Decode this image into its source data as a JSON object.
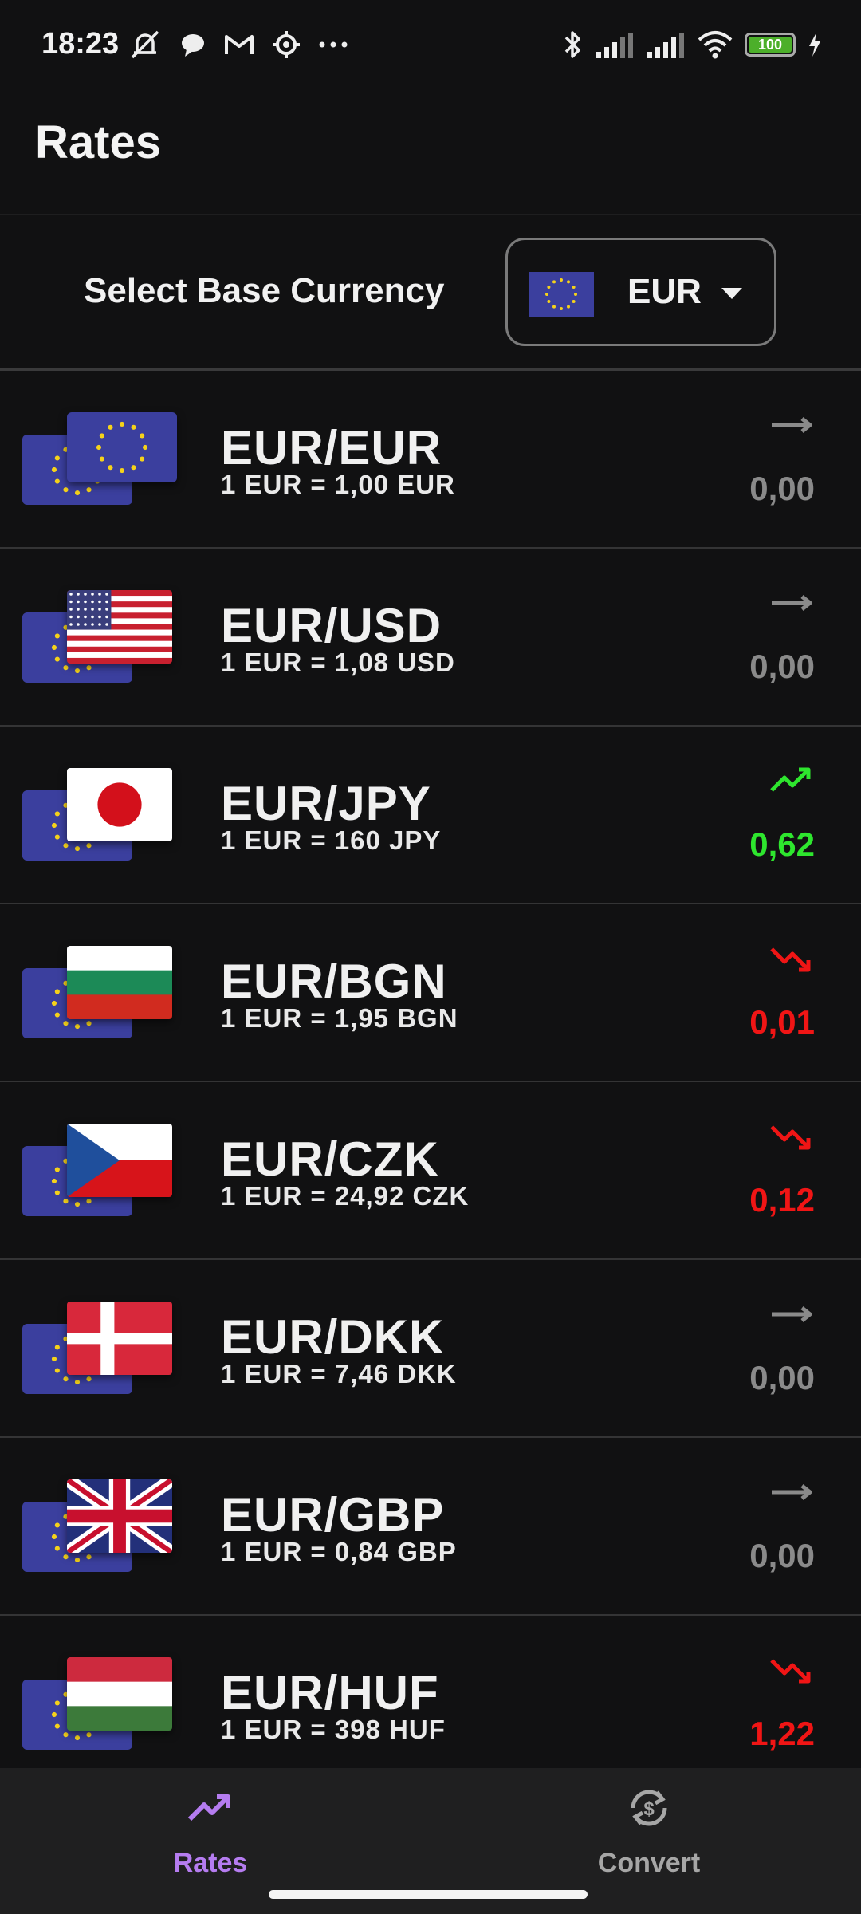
{
  "status_bar": {
    "time": "18:23",
    "battery": "100",
    "icons_left": [
      "bell-off-icon",
      "chat-bubble-icon",
      "gmail-icon",
      "settings-cog-icon",
      "more-dots-icon"
    ],
    "icons_right": [
      "bluetooth-icon",
      "signal-icon",
      "signal-icon",
      "wifi-icon",
      "battery-icon",
      "charging-icon"
    ]
  },
  "header": {
    "title": "Rates"
  },
  "base_currency": {
    "label": "Select Base Currency",
    "selected": "EUR",
    "flag": "eu-flag-icon"
  },
  "colors": {
    "up": "#2ee62e",
    "down": "#f01515",
    "flat": "#8a8a8a",
    "accent": "#b57cf0",
    "nav_inactive": "#a6a6a6"
  },
  "rates": [
    {
      "pair": "EUR/EUR",
      "rate": "1 EUR = 1,00 EUR",
      "change": "0,00",
      "trend": "flat",
      "flag": "eu"
    },
    {
      "pair": "EUR/USD",
      "rate": "1 EUR = 1,08 USD",
      "change": "0,00",
      "trend": "flat",
      "flag": "us"
    },
    {
      "pair": "EUR/JPY",
      "rate": "1 EUR = 160 JPY",
      "change": "0,62",
      "trend": "up",
      "flag": "jp"
    },
    {
      "pair": "EUR/BGN",
      "rate": "1 EUR = 1,95 BGN",
      "change": "0,01",
      "trend": "down",
      "flag": "bg"
    },
    {
      "pair": "EUR/CZK",
      "rate": "1 EUR = 24,92 CZK",
      "change": "0,12",
      "trend": "down",
      "flag": "cz"
    },
    {
      "pair": "EUR/DKK",
      "rate": "1 EUR = 7,46 DKK",
      "change": "0,00",
      "trend": "flat",
      "flag": "dk"
    },
    {
      "pair": "EUR/GBP",
      "rate": "1 EUR = 0,84 GBP",
      "change": "0,00",
      "trend": "flat",
      "flag": "gb"
    },
    {
      "pair": "EUR/HUF",
      "rate": "1 EUR = 398 HUF",
      "change": "1,22",
      "trend": "down",
      "flag": "hu"
    }
  ],
  "nav": {
    "rates_label": "Rates",
    "convert_label": "Convert",
    "active": "rates"
  }
}
